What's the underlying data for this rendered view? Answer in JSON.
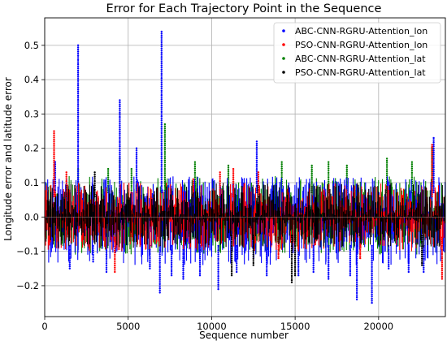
{
  "chart_data": {
    "type": "scatter",
    "title": "Error for Each Trajectory Point in the Sequence",
    "xlabel": "Sequence number",
    "ylabel": "Longitude error and latitude error",
    "xlim": [
      0,
      24000
    ],
    "ylim": [
      -0.29,
      0.58
    ],
    "x_ticks": [
      0,
      5000,
      10000,
      15000,
      20000
    ],
    "x_tick_labels": [
      "0",
      "5000",
      "10000",
      "15000",
      "20000"
    ],
    "y_ticks": [
      -0.2,
      -0.1,
      0.0,
      0.1,
      0.2,
      0.3,
      0.4,
      0.5
    ],
    "y_tick_labels": [
      "−0.2",
      "−0.1",
      "0.0",
      "0.1",
      "0.2",
      "0.3",
      "0.4",
      "0.5"
    ],
    "grid": true,
    "legend_position": "top-right",
    "draw_order": [
      2,
      0,
      1,
      3
    ],
    "series": [
      {
        "name": "ABC-CNN-RGRU-Attention_lon",
        "color": "#0000ff",
        "band": [
          -0.14,
          0.12
        ],
        "spikes": [
          {
            "x": 630,
            "y": 0.16
          },
          {
            "x": 1500,
            "y": -0.15
          },
          {
            "x": 2000,
            "y": 0.5
          },
          {
            "x": 2900,
            "y": -0.13
          },
          {
            "x": 3700,
            "y": -0.16
          },
          {
            "x": 4500,
            "y": 0.34
          },
          {
            "x": 5500,
            "y": 0.2
          },
          {
            "x": 6300,
            "y": -0.15
          },
          {
            "x": 6900,
            "y": -0.22
          },
          {
            "x": 7000,
            "y": 0.54
          },
          {
            "x": 7600,
            "y": -0.17
          },
          {
            "x": 8300,
            "y": -0.18
          },
          {
            "x": 9300,
            "y": -0.17
          },
          {
            "x": 10400,
            "y": -0.21
          },
          {
            "x": 11500,
            "y": -0.16
          },
          {
            "x": 12700,
            "y": 0.22
          },
          {
            "x": 13300,
            "y": -0.17
          },
          {
            "x": 15200,
            "y": -0.17
          },
          {
            "x": 16100,
            "y": -0.16
          },
          {
            "x": 17000,
            "y": -0.18
          },
          {
            "x": 18300,
            "y": -0.17
          },
          {
            "x": 18700,
            "y": -0.24
          },
          {
            "x": 19600,
            "y": -0.25
          },
          {
            "x": 20600,
            "y": -0.15
          },
          {
            "x": 21800,
            "y": -0.16
          },
          {
            "x": 22700,
            "y": -0.16
          },
          {
            "x": 23300,
            "y": 0.23
          }
        ]
      },
      {
        "name": "PSO-CNN-RGRU-Attention_lon",
        "color": "#ff0000",
        "band": [
          -0.1,
          0.1
        ],
        "spikes": [
          {
            "x": 560,
            "y": 0.25
          },
          {
            "x": 1300,
            "y": 0.13
          },
          {
            "x": 4200,
            "y": -0.16
          },
          {
            "x": 8900,
            "y": 0.11
          },
          {
            "x": 10500,
            "y": 0.13
          },
          {
            "x": 11300,
            "y": 0.14
          },
          {
            "x": 12800,
            "y": 0.13
          },
          {
            "x": 14000,
            "y": -0.12
          },
          {
            "x": 18900,
            "y": -0.12
          },
          {
            "x": 23200,
            "y": 0.21
          },
          {
            "x": 23800,
            "y": -0.18
          }
        ]
      },
      {
        "name": "ABC-CNN-RGRU-Attention_lat",
        "color": "#008000",
        "band": [
          -0.11,
          0.12
        ],
        "spikes": [
          {
            "x": 2000,
            "y": 0.14
          },
          {
            "x": 3800,
            "y": 0.14
          },
          {
            "x": 4500,
            "y": 0.17
          },
          {
            "x": 5200,
            "y": 0.14
          },
          {
            "x": 7200,
            "y": 0.27
          },
          {
            "x": 9000,
            "y": 0.16
          },
          {
            "x": 11000,
            "y": 0.15
          },
          {
            "x": 14200,
            "y": 0.16
          },
          {
            "x": 16000,
            "y": 0.15
          },
          {
            "x": 17000,
            "y": 0.16
          },
          {
            "x": 18100,
            "y": 0.15
          },
          {
            "x": 20500,
            "y": 0.17
          },
          {
            "x": 22000,
            "y": 0.16
          },
          {
            "x": 23200,
            "y": 0.2
          }
        ]
      },
      {
        "name": "PSO-CNN-RGRU-Attention_lat",
        "color": "#000000",
        "band": [
          -0.09,
          0.1
        ],
        "spikes": [
          {
            "x": 3000,
            "y": 0.13
          },
          {
            "x": 11200,
            "y": -0.17
          },
          {
            "x": 12500,
            "y": -0.14
          },
          {
            "x": 14800,
            "y": -0.19
          },
          {
            "x": 15000,
            "y": -0.17
          },
          {
            "x": 22600,
            "y": -0.14
          }
        ]
      }
    ]
  }
}
